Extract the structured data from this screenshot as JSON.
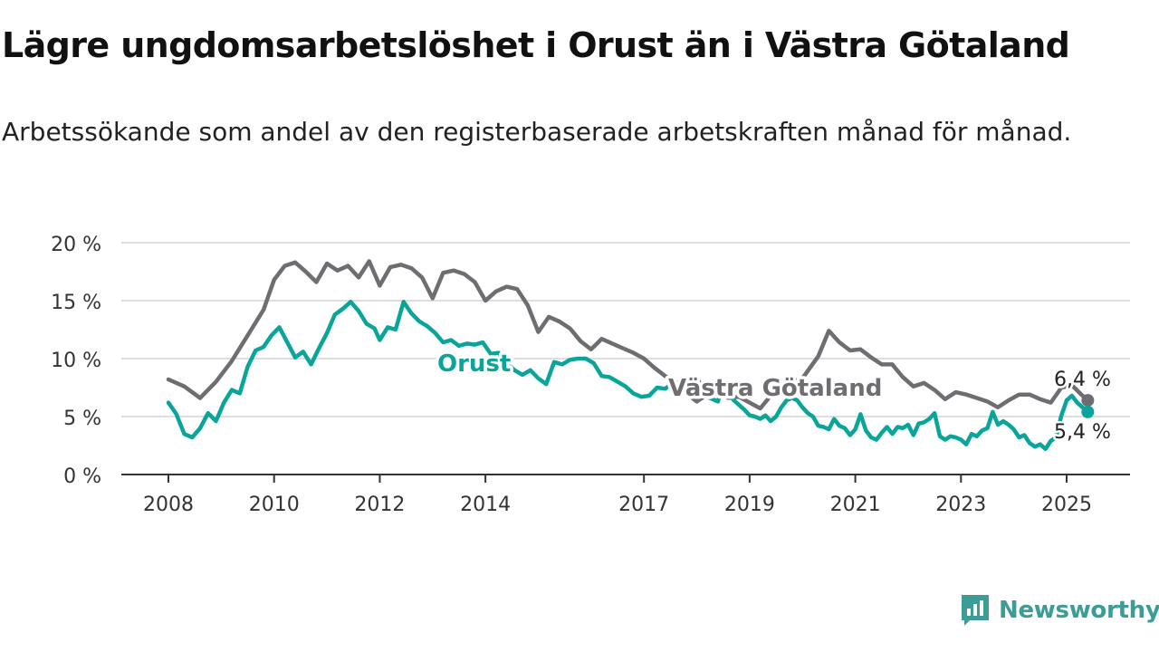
{
  "title": "Lägre ungdomsarbetslöshet i Orust än i Västra Götaland",
  "subtitle": "Arbetssökande som andel av den registerbaserade arbetskraften månad för månad.",
  "brand": {
    "name": "Newsworthy",
    "icon": "newsworthy-logo-icon",
    "color": "#3c9c96"
  },
  "chart_data": {
    "type": "line",
    "title": "Lägre ungdomsarbetslöshet i Orust än i Västra Götaland",
    "subtitle": "Arbetssökande som andel av den registerbaserade arbetskraften månad för månad.",
    "xlabel": "",
    "ylabel": "",
    "ylim": [
      0,
      20
    ],
    "xlim": [
      2007.5,
      2026.2
    ],
    "grid": true,
    "legend": "inline labels",
    "y_ticks": [
      0,
      5,
      10,
      15,
      20
    ],
    "y_tick_labels": [
      "0 %",
      "5 %",
      "10 %",
      "15 %",
      "20 %"
    ],
    "x_ticks": [
      2008,
      2010,
      2012,
      2014,
      2017,
      2019,
      2021,
      2023,
      2025
    ],
    "x_tick_labels": [
      "2008",
      "2010",
      "2012",
      "2014",
      "2017",
      "2019",
      "2021",
      "2023",
      "2025"
    ],
    "series": [
      {
        "name": "Västra Götaland",
        "color": "#6d6d72",
        "end_label": "6,4 %",
        "points": [
          [
            2008.0,
            8.2
          ],
          [
            2008.3,
            7.6
          ],
          [
            2008.6,
            6.6
          ],
          [
            2008.9,
            8.0
          ],
          [
            2009.2,
            9.8
          ],
          [
            2009.5,
            12.0
          ],
          [
            2009.8,
            14.2
          ],
          [
            2010.0,
            16.8
          ],
          [
            2010.2,
            18.0
          ],
          [
            2010.4,
            18.3
          ],
          [
            2010.6,
            17.5
          ],
          [
            2010.8,
            16.6
          ],
          [
            2011.0,
            18.2
          ],
          [
            2011.2,
            17.6
          ],
          [
            2011.4,
            18.0
          ],
          [
            2011.6,
            17.0
          ],
          [
            2011.8,
            18.4
          ],
          [
            2012.0,
            16.3
          ],
          [
            2012.2,
            17.9
          ],
          [
            2012.4,
            18.1
          ],
          [
            2012.6,
            17.8
          ],
          [
            2012.8,
            17.0
          ],
          [
            2013.0,
            15.2
          ],
          [
            2013.2,
            17.4
          ],
          [
            2013.4,
            17.6
          ],
          [
            2013.6,
            17.3
          ],
          [
            2013.8,
            16.6
          ],
          [
            2014.0,
            15.0
          ],
          [
            2014.2,
            15.8
          ],
          [
            2014.4,
            16.2
          ],
          [
            2014.6,
            16.0
          ],
          [
            2014.8,
            14.6
          ],
          [
            2015.0,
            12.3
          ],
          [
            2015.2,
            13.6
          ],
          [
            2015.4,
            13.2
          ],
          [
            2015.6,
            12.6
          ],
          [
            2015.8,
            11.5
          ],
          [
            2016.0,
            10.8
          ],
          [
            2016.2,
            11.7
          ],
          [
            2016.4,
            11.3
          ],
          [
            2016.6,
            10.9
          ],
          [
            2016.8,
            10.5
          ],
          [
            2017.0,
            10.0
          ],
          [
            2017.2,
            9.2
          ],
          [
            2017.4,
            8.5
          ],
          [
            2017.6,
            8.0
          ],
          [
            2017.8,
            7.0
          ],
          [
            2018.0,
            6.3
          ],
          [
            2018.2,
            6.9
          ],
          [
            2018.4,
            7.2
          ],
          [
            2018.6,
            6.6
          ],
          [
            2018.8,
            6.7
          ],
          [
            2019.0,
            6.2
          ],
          [
            2019.2,
            5.7
          ],
          [
            2019.4,
            6.8
          ],
          [
            2019.6,
            7.3
          ],
          [
            2019.8,
            8.0
          ],
          [
            2020.0,
            8.3
          ],
          [
            2020.3,
            10.2
          ],
          [
            2020.5,
            12.4
          ],
          [
            2020.7,
            11.4
          ],
          [
            2020.9,
            10.7
          ],
          [
            2021.1,
            10.8
          ],
          [
            2021.3,
            10.1
          ],
          [
            2021.5,
            9.5
          ],
          [
            2021.7,
            9.5
          ],
          [
            2021.9,
            8.4
          ],
          [
            2022.1,
            7.6
          ],
          [
            2022.3,
            7.9
          ],
          [
            2022.5,
            7.3
          ],
          [
            2022.7,
            6.5
          ],
          [
            2022.9,
            7.1
          ],
          [
            2023.1,
            6.9
          ],
          [
            2023.3,
            6.6
          ],
          [
            2023.5,
            6.3
          ],
          [
            2023.7,
            5.8
          ],
          [
            2023.9,
            6.4
          ],
          [
            2024.1,
            6.9
          ],
          [
            2024.3,
            6.9
          ],
          [
            2024.5,
            6.5
          ],
          [
            2024.7,
            6.2
          ],
          [
            2024.9,
            7.5
          ],
          [
            2025.1,
            7.7
          ],
          [
            2025.3,
            6.8
          ],
          [
            2025.4,
            6.4
          ]
        ]
      },
      {
        "name": "Orust",
        "color": "#0aa59a",
        "end_label": "5,4 %",
        "points": [
          [
            2008.0,
            6.2
          ],
          [
            2008.15,
            5.2
          ],
          [
            2008.3,
            3.5
          ],
          [
            2008.45,
            3.2
          ],
          [
            2008.6,
            4.0
          ],
          [
            2008.75,
            5.3
          ],
          [
            2008.9,
            4.6
          ],
          [
            2009.05,
            6.2
          ],
          [
            2009.2,
            7.3
          ],
          [
            2009.35,
            7.0
          ],
          [
            2009.5,
            9.3
          ],
          [
            2009.65,
            10.7
          ],
          [
            2009.8,
            11.0
          ],
          [
            2009.95,
            12.0
          ],
          [
            2010.1,
            12.7
          ],
          [
            2010.25,
            11.4
          ],
          [
            2010.4,
            10.1
          ],
          [
            2010.55,
            10.6
          ],
          [
            2010.7,
            9.5
          ],
          [
            2010.85,
            10.9
          ],
          [
            2011.0,
            12.2
          ],
          [
            2011.15,
            13.8
          ],
          [
            2011.3,
            14.3
          ],
          [
            2011.45,
            14.9
          ],
          [
            2011.6,
            14.1
          ],
          [
            2011.75,
            13.0
          ],
          [
            2011.9,
            12.6
          ],
          [
            2012.0,
            11.6
          ],
          [
            2012.15,
            12.7
          ],
          [
            2012.3,
            12.5
          ],
          [
            2012.45,
            14.9
          ],
          [
            2012.6,
            13.9
          ],
          [
            2012.75,
            13.2
          ],
          [
            2012.9,
            12.8
          ],
          [
            2013.05,
            12.2
          ],
          [
            2013.2,
            11.4
          ],
          [
            2013.35,
            11.6
          ],
          [
            2013.5,
            11.1
          ],
          [
            2013.65,
            11.3
          ],
          [
            2013.8,
            11.2
          ],
          [
            2013.95,
            11.4
          ],
          [
            2014.1,
            10.4
          ],
          [
            2014.25,
            10.5
          ],
          [
            2014.4,
            9.6
          ],
          [
            2014.55,
            9.0
          ],
          [
            2014.7,
            8.6
          ],
          [
            2014.85,
            9.0
          ],
          [
            2015.0,
            8.3
          ],
          [
            2015.15,
            7.8
          ],
          [
            2015.3,
            9.7
          ],
          [
            2015.45,
            9.5
          ],
          [
            2015.6,
            9.9
          ],
          [
            2015.75,
            10.0
          ],
          [
            2015.9,
            10.0
          ],
          [
            2016.05,
            9.6
          ],
          [
            2016.2,
            8.5
          ],
          [
            2016.35,
            8.4
          ],
          [
            2016.5,
            8.0
          ],
          [
            2016.65,
            7.6
          ],
          [
            2016.8,
            7.0
          ],
          [
            2016.95,
            6.7
          ],
          [
            2017.1,
            6.8
          ],
          [
            2017.25,
            7.5
          ],
          [
            2017.4,
            7.4
          ],
          [
            2017.55,
            7.9
          ],
          [
            2017.7,
            7.6
          ],
          [
            2017.85,
            8.2
          ],
          [
            2018.0,
            8.4
          ],
          [
            2018.1,
            7.5
          ],
          [
            2018.2,
            6.7
          ],
          [
            2018.3,
            6.5
          ],
          [
            2018.4,
            6.3
          ],
          [
            2018.5,
            7.8
          ],
          [
            2018.6,
            7.0
          ],
          [
            2018.7,
            6.4
          ],
          [
            2018.8,
            6.0
          ],
          [
            2018.9,
            5.6
          ],
          [
            2019.0,
            5.1
          ],
          [
            2019.1,
            5.0
          ],
          [
            2019.2,
            4.8
          ],
          [
            2019.3,
            5.1
          ],
          [
            2019.4,
            4.6
          ],
          [
            2019.5,
            5.0
          ],
          [
            2019.6,
            5.8
          ],
          [
            2019.7,
            6.4
          ],
          [
            2019.8,
            6.6
          ],
          [
            2019.9,
            6.4
          ],
          [
            2020.0,
            5.8
          ],
          [
            2020.1,
            5.3
          ],
          [
            2020.2,
            5.0
          ],
          [
            2020.3,
            4.2
          ],
          [
            2020.4,
            4.1
          ],
          [
            2020.5,
            3.9
          ],
          [
            2020.6,
            4.8
          ],
          [
            2020.7,
            4.2
          ],
          [
            2020.8,
            4.0
          ],
          [
            2020.9,
            3.4
          ],
          [
            2021.0,
            3.9
          ],
          [
            2021.1,
            5.2
          ],
          [
            2021.2,
            3.8
          ],
          [
            2021.3,
            3.2
          ],
          [
            2021.4,
            3.0
          ],
          [
            2021.5,
            3.6
          ],
          [
            2021.6,
            4.1
          ],
          [
            2021.7,
            3.5
          ],
          [
            2021.8,
            4.1
          ],
          [
            2021.9,
            4.0
          ],
          [
            2022.0,
            4.3
          ],
          [
            2022.1,
            3.4
          ],
          [
            2022.2,
            4.4
          ],
          [
            2022.3,
            4.5
          ],
          [
            2022.4,
            4.8
          ],
          [
            2022.5,
            5.3
          ],
          [
            2022.6,
            3.3
          ],
          [
            2022.7,
            3.0
          ],
          [
            2022.8,
            3.3
          ],
          [
            2022.9,
            3.2
          ],
          [
            2023.0,
            3.0
          ],
          [
            2023.1,
            2.6
          ],
          [
            2023.2,
            3.5
          ],
          [
            2023.3,
            3.3
          ],
          [
            2023.4,
            3.8
          ],
          [
            2023.5,
            4.0
          ],
          [
            2023.6,
            5.4
          ],
          [
            2023.7,
            4.3
          ],
          [
            2023.8,
            4.6
          ],
          [
            2023.9,
            4.3
          ],
          [
            2024.0,
            3.9
          ],
          [
            2024.1,
            3.2
          ],
          [
            2024.2,
            3.4
          ],
          [
            2024.3,
            2.7
          ],
          [
            2024.4,
            2.4
          ],
          [
            2024.5,
            2.6
          ],
          [
            2024.6,
            2.2
          ],
          [
            2024.7,
            2.9
          ],
          [
            2024.8,
            3.2
          ],
          [
            2024.9,
            5.1
          ],
          [
            2025.0,
            6.4
          ],
          [
            2025.1,
            6.8
          ],
          [
            2025.2,
            6.2
          ],
          [
            2025.3,
            5.8
          ],
          [
            2025.4,
            5.4
          ]
        ]
      }
    ]
  }
}
